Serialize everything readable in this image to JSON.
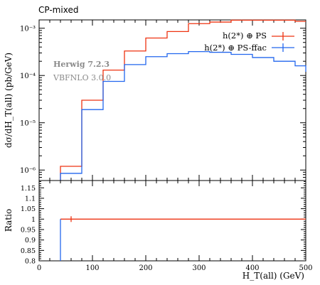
{
  "chart_data": [
    {
      "type": "line",
      "panel": "main",
      "title": "CP-mixed",
      "ylabel": "dσ/dH_T(all) (pb/GeV)",
      "yscale": "log",
      "ylim": [
        6e-07,
        0.0015
      ],
      "xlim": [
        0,
        500
      ],
      "y_tick_labels": [
        "10⁻⁶",
        "10⁻⁵",
        "10⁻⁴",
        "10⁻³"
      ],
      "legend_position": "top-right",
      "annotations": [
        "Herwig 7.2.3",
        "VBFNLO 3.0.0"
      ],
      "bin_edges": [
        40,
        80,
        120,
        160,
        200,
        240,
        280,
        320,
        360,
        400,
        440,
        480,
        500
      ],
      "series": [
        {
          "name": "h(2*) ⊕ PS",
          "color": "#ee3311",
          "values": [
            1.2e-06,
            3e-05,
            0.00013,
            0.00033,
            0.00062,
            0.00085,
            0.00125,
            0.00135,
            0.00148,
            0.00148,
            0.00148,
            0.0014,
            0.0014
          ]
        },
        {
          "name": "h(2*) ⊕ PS-ffac",
          "color": "#2266ee",
          "values": [
            8.5e-07,
            1.9e-05,
            7.5e-05,
            0.00017,
            0.00025,
            0.00029,
            0.00032,
            0.00031,
            0.00028,
            0.00024,
            0.0002,
            0.00016,
            0.00012
          ]
        }
      ]
    },
    {
      "type": "line",
      "panel": "ratio",
      "ylabel": "Ratio",
      "xlabel": "H_T(all) (GeV)",
      "xlim": [
        0,
        500
      ],
      "ylim": [
        0.8,
        1.185
      ],
      "x_ticks": [
        0,
        100,
        200,
        300,
        400,
        500
      ],
      "y_ticks": [
        "0.8",
        "0.85",
        "0.9",
        "0.95",
        "1",
        "1.05",
        "1.1",
        "1.15"
      ],
      "series": [
        {
          "name": "h(2*) ⊕ PS",
          "color": "#ee3311",
          "x": [
            40,
            500
          ],
          "y": [
            1,
            1
          ],
          "error_bar_x": 60
        },
        {
          "name": "h(2*) ⊕ PS-ffac",
          "color": "#2266ee",
          "x": [
            40,
            40
          ],
          "y": [
            1,
            0.8
          ]
        }
      ]
    }
  ],
  "legend": [
    {
      "label": "h(2*) ⊕ PS",
      "color": "#ee3311"
    },
    {
      "label": "h(2*) ⊕ PS-ffac",
      "color": "#2266ee"
    }
  ]
}
